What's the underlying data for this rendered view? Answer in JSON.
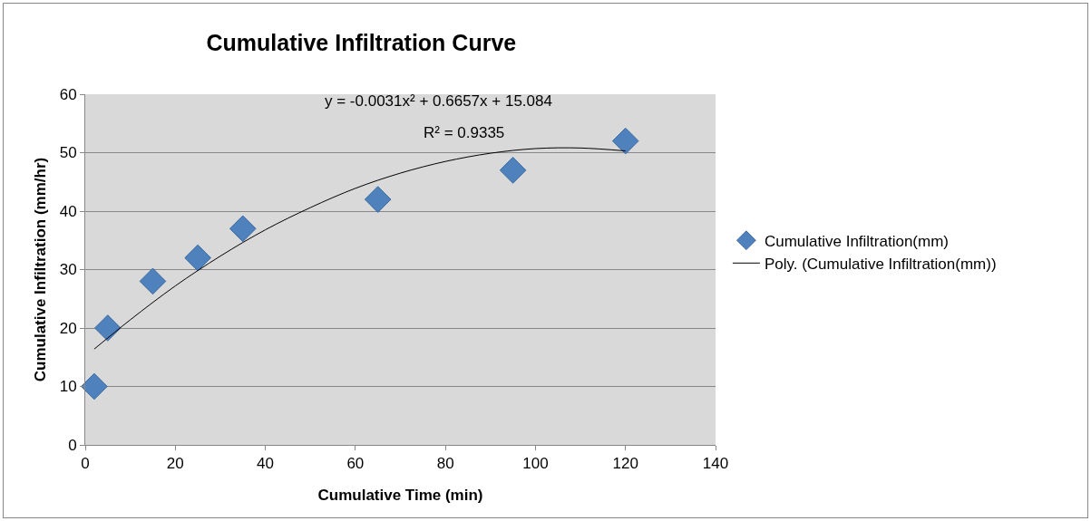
{
  "chart_data": {
    "type": "scatter",
    "title": "Cumulative Infiltration Curve",
    "xlabel": "Cumulative Time (min)",
    "ylabel": "Cumulative Infiltration (mm/hr)",
    "annotations": [
      "y = -0.0031x² + 0.6657x + 15.084",
      "R² = 0.9335"
    ],
    "xlim": [
      0,
      140
    ],
    "xticks": [
      0,
      20,
      40,
      60,
      80,
      100,
      120,
      140
    ],
    "ylim": [
      0,
      60
    ],
    "yticks": [
      0,
      10,
      20,
      30,
      40,
      50,
      60
    ],
    "grid": "y",
    "legend": "right",
    "marker": "diamond",
    "series": [
      {
        "name": "Cumulative Infiltration(mm)",
        "color": "#4f81bd",
        "x": [
          2,
          5,
          15,
          25,
          35,
          65,
          95,
          120
        ],
        "values": [
          10,
          20,
          28,
          32,
          37,
          42,
          47,
          52
        ]
      },
      {
        "name": "Poly. (Cumulative Infiltration(mm))",
        "type": "line",
        "color": "#000000",
        "line_style": "solid",
        "marker": "none",
        "x": [
          2,
          10,
          20,
          30,
          40,
          50,
          60,
          70,
          80,
          90,
          100,
          110,
          120
        ],
        "values": [
          16.4,
          21.4,
          27.2,
          32.3,
          36.8,
          40.6,
          43.9,
          46.5,
          48.5,
          49.9,
          50.7,
          50.8,
          50.3
        ]
      }
    ]
  }
}
